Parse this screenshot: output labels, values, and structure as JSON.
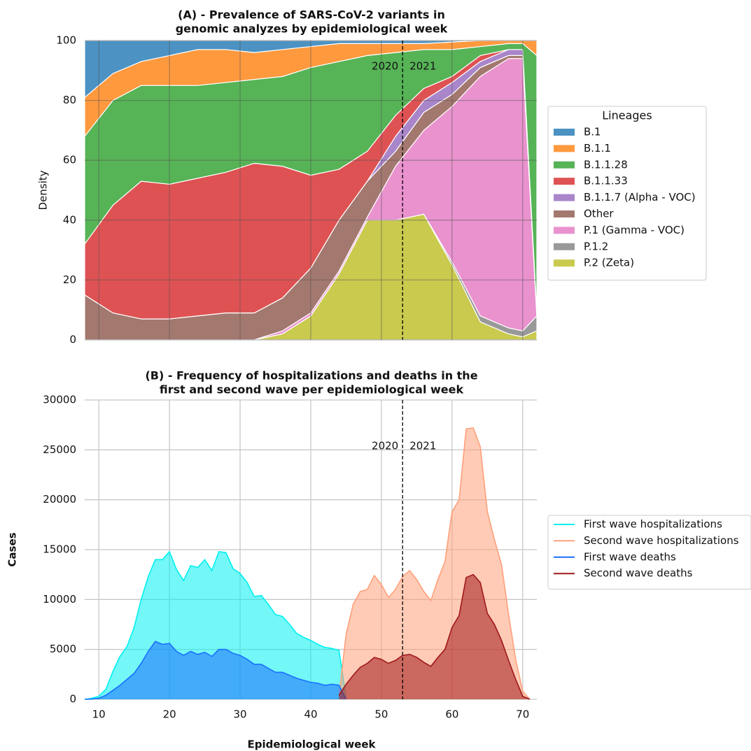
{
  "chart_data": [
    {
      "type": "stacked_area",
      "title": [
        "(A) - Prevalence of SARS-CoV-2 variants in",
        "genomic analyzes by epidemiological week"
      ],
      "ylabel": "Density",
      "x": [
        8,
        12,
        16,
        20,
        24,
        28,
        32,
        36,
        40,
        44,
        48,
        52,
        56,
        60,
        64,
        68,
        70,
        72
      ],
      "xlim": [
        8,
        72
      ],
      "xticks": [
        10,
        20,
        30,
        40,
        50,
        60,
        70
      ],
      "show_xtick_labels": false,
      "ylim": [
        0,
        100
      ],
      "yticks": [
        0,
        20,
        40,
        60,
        80,
        100
      ],
      "grid": true,
      "legend": "right",
      "legend_title": "Lineages",
      "vline": 53,
      "annotations": [
        "2020",
        "2021"
      ],
      "series": [
        {
          "name": "B.1",
          "color": "#1f77b4",
          "values": [
            19,
            11,
            7,
            5,
            3,
            3,
            4,
            3,
            2,
            1,
            1,
            1,
            1,
            0.5,
            0,
            0,
            0,
            0
          ]
        },
        {
          "name": "B.1.1",
          "color": "#ff7f0e",
          "values": [
            13,
            9,
            8,
            10,
            12,
            11,
            9,
            9,
            7,
            6,
            4,
            3,
            2,
            2.5,
            2,
            1,
            1,
            5
          ]
        },
        {
          "name": "B.1.1.28",
          "color": "#2ca02c",
          "values": [
            36,
            35,
            32,
            33,
            31,
            30,
            28,
            30,
            36,
            36,
            32,
            21,
            13,
            9,
            3,
            2,
            2,
            86
          ]
        },
        {
          "name": "B.1.1.33",
          "color": "#d62728",
          "values": [
            17,
            36,
            46,
            45,
            46,
            47,
            50,
            44,
            31,
            17,
            10,
            7,
            4,
            2,
            2,
            0,
            0,
            0
          ]
        },
        {
          "name": "B.1.1.7 (Alpha - VOC)",
          "color": "#9467bd",
          "values": [
            0,
            0,
            0,
            0,
            0,
            0,
            0,
            0,
            0,
            0,
            0,
            5,
            4,
            4,
            2,
            2,
            2,
            0.5
          ]
        },
        {
          "name": "Other",
          "color": "#8c564b",
          "values": [
            15,
            9,
            7,
            7,
            8,
            9,
            9,
            11,
            15,
            17,
            12,
            5,
            6,
            4,
            3,
            1,
            1,
            0.5
          ]
        },
        {
          "name": "P.1 (Gamma - VOC)",
          "color": "#e377c2",
          "values": [
            0,
            0,
            0,
            0,
            0,
            0,
            0,
            1,
            1,
            1,
            1,
            18,
            28,
            52,
            80,
            90,
            91,
            0
          ]
        },
        {
          "name": "P.1.2",
          "color": "#7f7f7f",
          "values": [
            0,
            0,
            0,
            0,
            0,
            0,
            0,
            0,
            0,
            0,
            0,
            0,
            0,
            1,
            2,
            2,
            2,
            5
          ]
        },
        {
          "name": "P.2 (Zeta)",
          "color": "#bcbd22",
          "values": [
            0,
            0,
            0,
            0,
            0,
            0,
            0,
            2,
            8,
            22,
            40,
            40,
            42,
            25,
            6,
            2,
            1,
            3
          ]
        }
      ]
    },
    {
      "type": "area",
      "title": [
        "(B) - Frequency of hospitalizations and deaths in the",
        "first and second wave per epidemiological week"
      ],
      "xlabel": "Epidemiological week",
      "ylabel": "Cases",
      "x": [
        8,
        9,
        10,
        11,
        12,
        13,
        14,
        15,
        16,
        17,
        18,
        19,
        20,
        21,
        22,
        23,
        24,
        25,
        26,
        27,
        28,
        29,
        30,
        31,
        32,
        33,
        34,
        35,
        36,
        37,
        38,
        39,
        40,
        41,
        42,
        43,
        44,
        45,
        46,
        47,
        48,
        49,
        50,
        51,
        52,
        53,
        54,
        55,
        56,
        57,
        58,
        59,
        60,
        61,
        62,
        63,
        64,
        65,
        66,
        67,
        68,
        69,
        70,
        71,
        72
      ],
      "xlim": [
        8,
        72
      ],
      "xticks": [
        10,
        20,
        30,
        40,
        50,
        60,
        70
      ],
      "show_xtick_labels": true,
      "ylim": [
        0,
        30000
      ],
      "yticks": [
        0,
        5000,
        10000,
        15000,
        20000,
        25000,
        30000
      ],
      "grid": true,
      "legend": "right",
      "vline": 53,
      "annotations": [
        "2020",
        "2021"
      ],
      "series": [
        {
          "name": "First wave hospitalizations",
          "color": "#00f0f0",
          "values": [
            0,
            100,
            300,
            1000,
            2800,
            4300,
            5300,
            7200,
            10000,
            12300,
            14000,
            14000,
            14800,
            13000,
            11900,
            13400,
            13200,
            14000,
            12900,
            14800,
            14700,
            13100,
            12600,
            11700,
            10300,
            10400,
            9500,
            8500,
            8300,
            7500,
            6600,
            6200,
            5900,
            5500,
            5200,
            5100,
            4900,
            200,
            null,
            null,
            null,
            null,
            null,
            null,
            null,
            null,
            null,
            null,
            null,
            null,
            null,
            null,
            null,
            null,
            null,
            null,
            null,
            null,
            null,
            null,
            null,
            null,
            null,
            null,
            null
          ]
        },
        {
          "name": "Second wave hospitalizations",
          "color": "#ffa07a",
          "values": [
            null,
            null,
            null,
            null,
            null,
            null,
            null,
            null,
            null,
            null,
            null,
            null,
            null,
            null,
            null,
            null,
            null,
            null,
            null,
            null,
            null,
            null,
            null,
            null,
            null,
            null,
            null,
            null,
            null,
            null,
            null,
            null,
            null,
            null,
            null,
            null,
            300,
            6500,
            9500,
            10800,
            11000,
            12400,
            11500,
            10200,
            11000,
            12300,
            12900,
            12000,
            10800,
            9900,
            12000,
            13800,
            18800,
            20000,
            27100,
            27200,
            25300,
            18800,
            16000,
            13500,
            8500,
            4000,
            800,
            0,
            null
          ]
        },
        {
          "name": "First wave deaths",
          "color": "#1a6fff",
          "values": [
            0,
            20,
            100,
            400,
            900,
            1400,
            2000,
            2600,
            3600,
            4800,
            5800,
            5500,
            5600,
            4800,
            4400,
            4800,
            4500,
            4700,
            4300,
            5000,
            5000,
            4600,
            4400,
            4000,
            3500,
            3500,
            3100,
            2700,
            2700,
            2400,
            2100,
            1900,
            1700,
            1600,
            1400,
            1500,
            1400,
            0,
            null,
            null,
            null,
            null,
            null,
            null,
            null,
            null,
            null,
            null,
            null,
            null,
            null,
            null,
            null,
            null,
            null,
            null,
            null,
            null,
            null,
            null,
            null,
            null,
            null,
            null,
            null
          ]
        },
        {
          "name": "Second wave deaths",
          "color": "#a01818",
          "values": [
            null,
            null,
            null,
            null,
            null,
            null,
            null,
            null,
            null,
            null,
            null,
            null,
            null,
            null,
            null,
            null,
            null,
            null,
            null,
            null,
            null,
            null,
            null,
            null,
            null,
            null,
            null,
            null,
            null,
            null,
            null,
            null,
            null,
            null,
            null,
            null,
            400,
            1500,
            2400,
            3200,
            3600,
            4200,
            4000,
            3600,
            3900,
            4400,
            4500,
            4200,
            3700,
            3300,
            4200,
            5000,
            7200,
            8400,
            12200,
            12500,
            11700,
            8600,
            7500,
            5900,
            3900,
            2000,
            300,
            0,
            null
          ]
        }
      ]
    }
  ]
}
